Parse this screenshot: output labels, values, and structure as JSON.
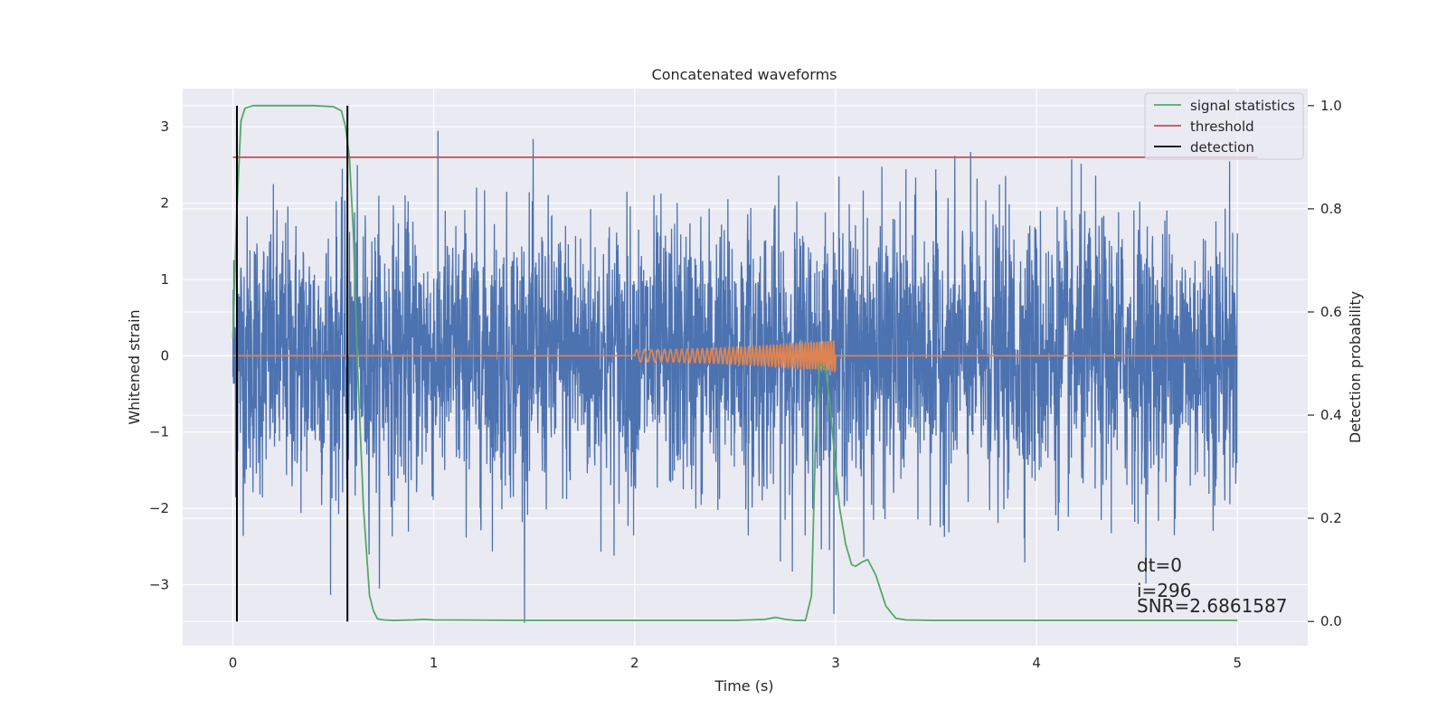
{
  "chart_data": {
    "type": "line",
    "title": "Concatenated waveforms",
    "xlabel": "Time (s)",
    "ylabel": "Whitened strain",
    "ylabel_right": "Detection probability",
    "xlim": [
      -0.25,
      5.35
    ],
    "ylim": [
      -3.8,
      3.5
    ],
    "ylim_right": [
      -0.047,
      1.033
    ],
    "x_ticks": [
      0,
      1,
      2,
      3,
      4,
      5
    ],
    "x_tick_labels": [
      "0",
      "1",
      "2",
      "3",
      "4",
      "5"
    ],
    "y_ticks": [
      -3,
      -2,
      -1,
      0,
      1,
      2,
      3
    ],
    "y_tick_labels": [
      "−3",
      "−2",
      "−1",
      "0",
      "1",
      "2",
      "3"
    ],
    "y_right_ticks": [
      0.0,
      0.2,
      0.4,
      0.6,
      0.8,
      1.0
    ],
    "y_right_tick_labels": [
      "0.0",
      "0.2",
      "0.4",
      "0.6",
      "0.8",
      "1.0"
    ],
    "grid": true,
    "legend_position": "top-right",
    "legend": [
      "signal statistics",
      "threshold",
      "detection"
    ],
    "series": [
      {
        "name": "",
        "axis": "left",
        "color": "#4c72b0",
        "kind": "noise",
        "x_range": [
          0,
          5
        ],
        "approx_std": 0.9,
        "approx_range": [
          -3.5,
          3.2
        ]
      },
      {
        "name": "",
        "axis": "left",
        "color": "#dd8452",
        "kind": "chirp",
        "x": [
          0,
          2.0,
          3.0,
          5.0
        ],
        "y": [
          0,
          0,
          0,
          0
        ],
        "chirp_x_range": [
          2.0,
          3.0
        ],
        "chirp_amplitude": [
          0.08,
          0.2
        ]
      },
      {
        "name": "signal statistics",
        "axis": "right",
        "color": "#55a868",
        "x": [
          0.0,
          0.02,
          0.04,
          0.06,
          0.1,
          0.2,
          0.3,
          0.4,
          0.5,
          0.54,
          0.56,
          0.58,
          0.6,
          0.62,
          0.65,
          0.68,
          0.7,
          0.72,
          0.75,
          0.8,
          0.9,
          0.95,
          1.0,
          1.5,
          2.0,
          2.5,
          2.65,
          2.7,
          2.75,
          2.8,
          2.85,
          2.88,
          2.9,
          2.92,
          2.95,
          2.97,
          3.0,
          3.02,
          3.05,
          3.08,
          3.1,
          3.13,
          3.16,
          3.2,
          3.25,
          3.3,
          3.35,
          3.5,
          4.0,
          4.5,
          5.0
        ],
        "y": [
          0.55,
          0.8,
          0.97,
          0.995,
          1.0,
          1.0,
          1.0,
          1.0,
          0.998,
          0.99,
          0.96,
          0.9,
          0.75,
          0.5,
          0.22,
          0.05,
          0.02,
          0.005,
          0.003,
          0.002,
          0.003,
          0.004,
          0.003,
          0.002,
          0.002,
          0.002,
          0.004,
          0.008,
          0.004,
          0.002,
          0.002,
          0.05,
          0.35,
          0.5,
          0.49,
          0.43,
          0.3,
          0.22,
          0.15,
          0.11,
          0.107,
          0.115,
          0.12,
          0.09,
          0.03,
          0.006,
          0.003,
          0.002,
          0.002,
          0.002,
          0.002
        ]
      },
      {
        "name": "threshold",
        "axis": "right",
        "color": "#c44e52",
        "x": [
          0.0,
          5.1
        ],
        "y": [
          0.9,
          0.9
        ]
      },
      {
        "name": "detection",
        "axis": "right",
        "color": "#000000",
        "kind": "vlines",
        "x": [
          0.02,
          0.57
        ],
        "y_range": [
          0.0,
          1.0
        ]
      }
    ],
    "annotations": [
      "dt=0",
      "i=296",
      "SNR=2.6861587"
    ]
  }
}
